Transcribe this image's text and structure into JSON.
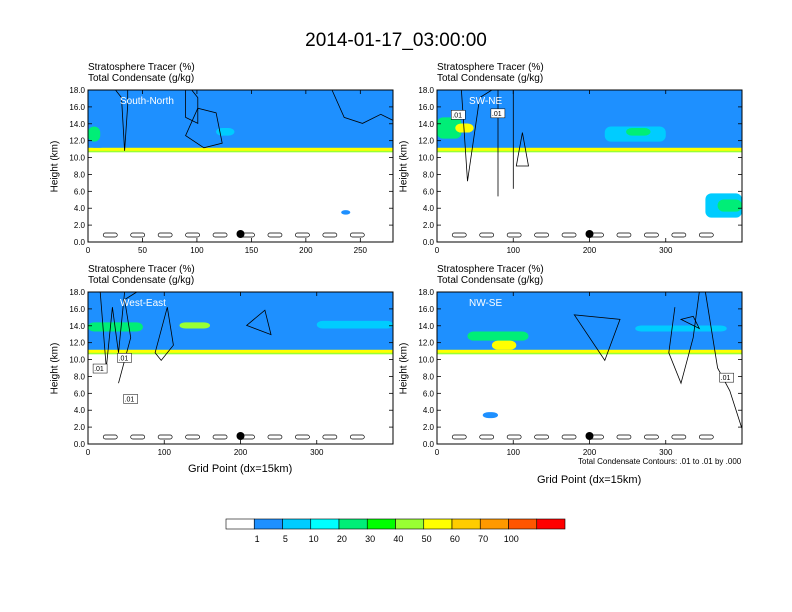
{
  "page_title": "2014-01-17_03:00:00",
  "contour_note": "Total Condensate Contours: .01 to .01 by .000",
  "chart_data": [
    {
      "type": "heatmap",
      "title_line1": "Stratosphere Tracer   (%)",
      "title_line2": "Total Condensate   (g/kg)",
      "label": "South-North",
      "ylabel": "Height (km)",
      "xlabel": "",
      "xlim": [
        0,
        280
      ],
      "ylim": [
        0,
        18
      ],
      "xticks": [
        0,
        50,
        100,
        150,
        200,
        250
      ],
      "yticks": [
        "0.0",
        "2.0",
        "4.0",
        "6.0",
        "8.0",
        "10.0",
        "12.0",
        "14.0",
        "16.0",
        "18.0"
      ],
      "contour_labels": [],
      "marker_x": 140
    },
    {
      "type": "heatmap",
      "title_line1": "Stratosphere Tracer   (%)",
      "title_line2": "Total Condensate   (g/kg)",
      "label": "SW-NE",
      "ylabel": "Height (km)",
      "xlabel": "",
      "xlim": [
        0,
        400
      ],
      "ylim": [
        0,
        18
      ],
      "xticks": [
        0,
        100,
        200,
        300
      ],
      "yticks": [
        "0.0",
        "2.0",
        "4.0",
        "6.0",
        "8.0",
        "10.0",
        "12.0",
        "14.0",
        "16.0",
        "18.0"
      ],
      "contour_labels": [
        ".01",
        ".01"
      ],
      "marker_x": 200
    },
    {
      "type": "heatmap",
      "title_line1": "Stratosphere Tracer   (%)",
      "title_line2": "Total Condensate   (g/kg)",
      "label": "West-East",
      "ylabel": "Height (km)",
      "xlabel": "Grid Point (dx=15km)",
      "xlim": [
        0,
        400
      ],
      "ylim": [
        0,
        18
      ],
      "xticks": [
        0,
        100,
        200,
        300
      ],
      "yticks": [
        "0.0",
        "2.0",
        "4.0",
        "6.0",
        "8.0",
        "10.0",
        "12.0",
        "14.0",
        "16.0",
        "18.0"
      ],
      "contour_labels": [
        ".01",
        ".01",
        ".01"
      ],
      "marker_x": 200
    },
    {
      "type": "heatmap",
      "title_line1": "Stratosphere Tracer   (%)",
      "title_line2": "Total Condensate   (g/kg)",
      "label": "NW-SE",
      "ylabel": "Height (km)",
      "xlabel": "Grid Point (dx=15km)",
      "xlim": [
        0,
        400
      ],
      "ylim": [
        0,
        18
      ],
      "xticks": [
        0,
        100,
        200,
        300
      ],
      "yticks": [
        "0.0",
        "2.0",
        "4.0",
        "6.0",
        "8.0",
        "10.0",
        "12.0",
        "14.0",
        "16.0",
        "18.0"
      ],
      "contour_labels": [
        ".01"
      ],
      "marker_x": 200
    }
  ],
  "colorbar": {
    "labels": [
      "1",
      "5",
      "10",
      "20",
      "30",
      "40",
      "50",
      "60",
      "70",
      "100"
    ],
    "colors": [
      "#ffffff",
      "#1e90ff",
      "#00ccff",
      "#00ffff",
      "#00ee77",
      "#00ff00",
      "#99ff33",
      "#ffff00",
      "#ffcc00",
      "#ff9900",
      "#ff5500",
      "#ff0000"
    ]
  }
}
